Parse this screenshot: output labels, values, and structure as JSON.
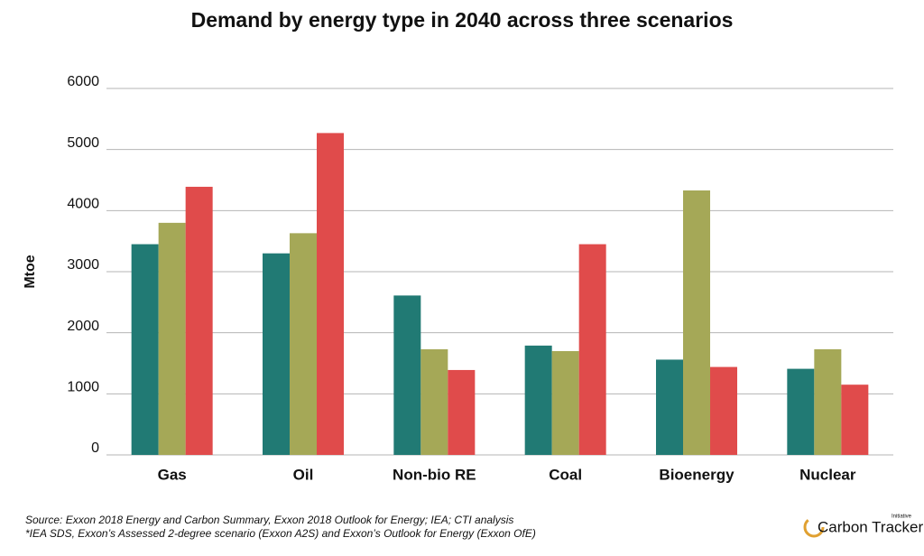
{
  "chart_data": {
    "type": "bar",
    "title": "Demand by energy type in 2040 across three scenarios",
    "y_label": "Mtoe",
    "categories": [
      "Gas",
      "Oil",
      "Non-bio RE",
      "Coal",
      "Bioenergy",
      "Nuclear"
    ],
    "series": [
      {
        "color": "#217a74",
        "values": [
          3450,
          3300,
          2610,
          1790,
          1560,
          1410
        ]
      },
      {
        "color": "#a5a857",
        "values": [
          3800,
          3630,
          1730,
          1700,
          4330,
          1730
        ]
      },
      {
        "color": "#e04b4b",
        "values": [
          4390,
          5270,
          1390,
          3450,
          1440,
          1150
        ]
      }
    ],
    "ylim": [
      0,
      6000
    ],
    "yticks": [
      0,
      1000,
      2000,
      3000,
      4000,
      5000,
      6000
    ],
    "grid": true,
    "source": "Source: Exxon 2018 Energy and Carbon Summary, Exxon 2018 Outlook for Energy; IEA; CTI analysis",
    "note": "*IEA SDS, Exxon’s Assessed 2-degree scenario (Exxon A2S) and Exxon’s Outlook for Energy (Exxon OfE)",
    "logo": "Carbon Tracker",
    "logo_sub": "Initiative"
  }
}
